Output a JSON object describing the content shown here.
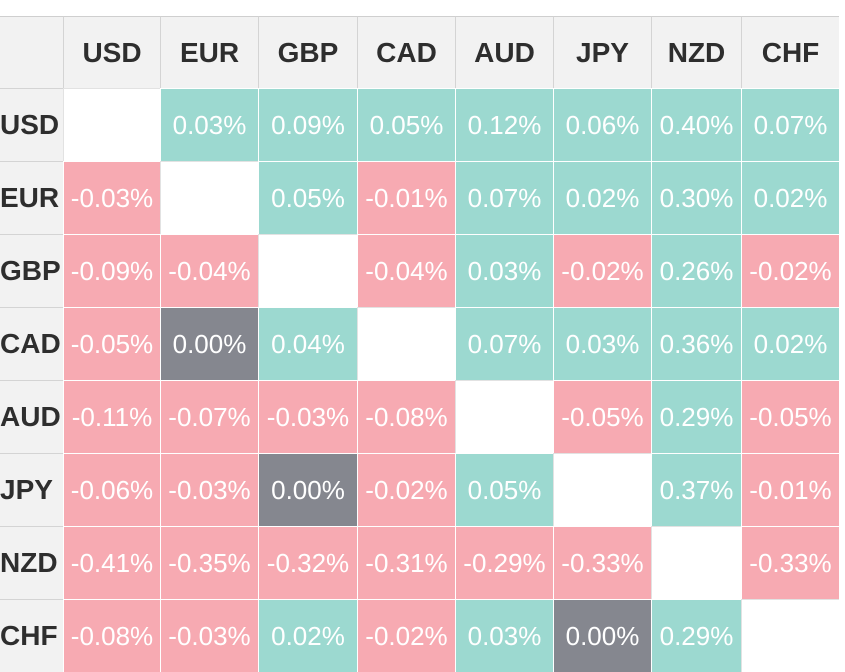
{
  "colors": {
    "positive": "#9cd9d0",
    "negative": "#f7aab2",
    "neutral": "#85878f",
    "diagonal": "#ffffff",
    "header_bg": "#f2f2f2",
    "header_text": "#2e2e2e",
    "value_text": "#ffffff"
  },
  "chart_data": {
    "type": "heatmap",
    "columns": [
      "USD",
      "EUR",
      "GBP",
      "CAD",
      "AUD",
      "JPY",
      "NZD",
      "CHF"
    ],
    "rows": [
      "USD",
      "EUR",
      "GBP",
      "CAD",
      "AUD",
      "JPY",
      "NZD",
      "CHF"
    ],
    "values": [
      [
        null,
        "0.03%",
        "0.09%",
        "0.05%",
        "0.12%",
        "0.06%",
        "0.40%",
        "0.07%"
      ],
      [
        "-0.03%",
        null,
        "0.05%",
        "-0.01%",
        "0.07%",
        "0.02%",
        "0.30%",
        "0.02%"
      ],
      [
        "-0.09%",
        "-0.04%",
        null,
        "-0.04%",
        "0.03%",
        "-0.02%",
        "0.26%",
        "-0.02%"
      ],
      [
        "-0.05%",
        "0.00%",
        "0.04%",
        null,
        "0.07%",
        "0.03%",
        "0.36%",
        "0.02%"
      ],
      [
        "-0.11%",
        "-0.07%",
        "-0.03%",
        "-0.08%",
        null,
        "-0.05%",
        "0.29%",
        "-0.05%"
      ],
      [
        "-0.06%",
        "-0.03%",
        "0.00%",
        "-0.02%",
        "0.05%",
        null,
        "0.37%",
        "-0.01%"
      ],
      [
        "-0.41%",
        "-0.35%",
        "-0.32%",
        "-0.31%",
        "-0.29%",
        "-0.33%",
        null,
        "-0.33%"
      ],
      [
        "-0.08%",
        "-0.03%",
        "0.02%",
        "-0.02%",
        "0.03%",
        "0.00%",
        "0.29%",
        null
      ]
    ]
  }
}
